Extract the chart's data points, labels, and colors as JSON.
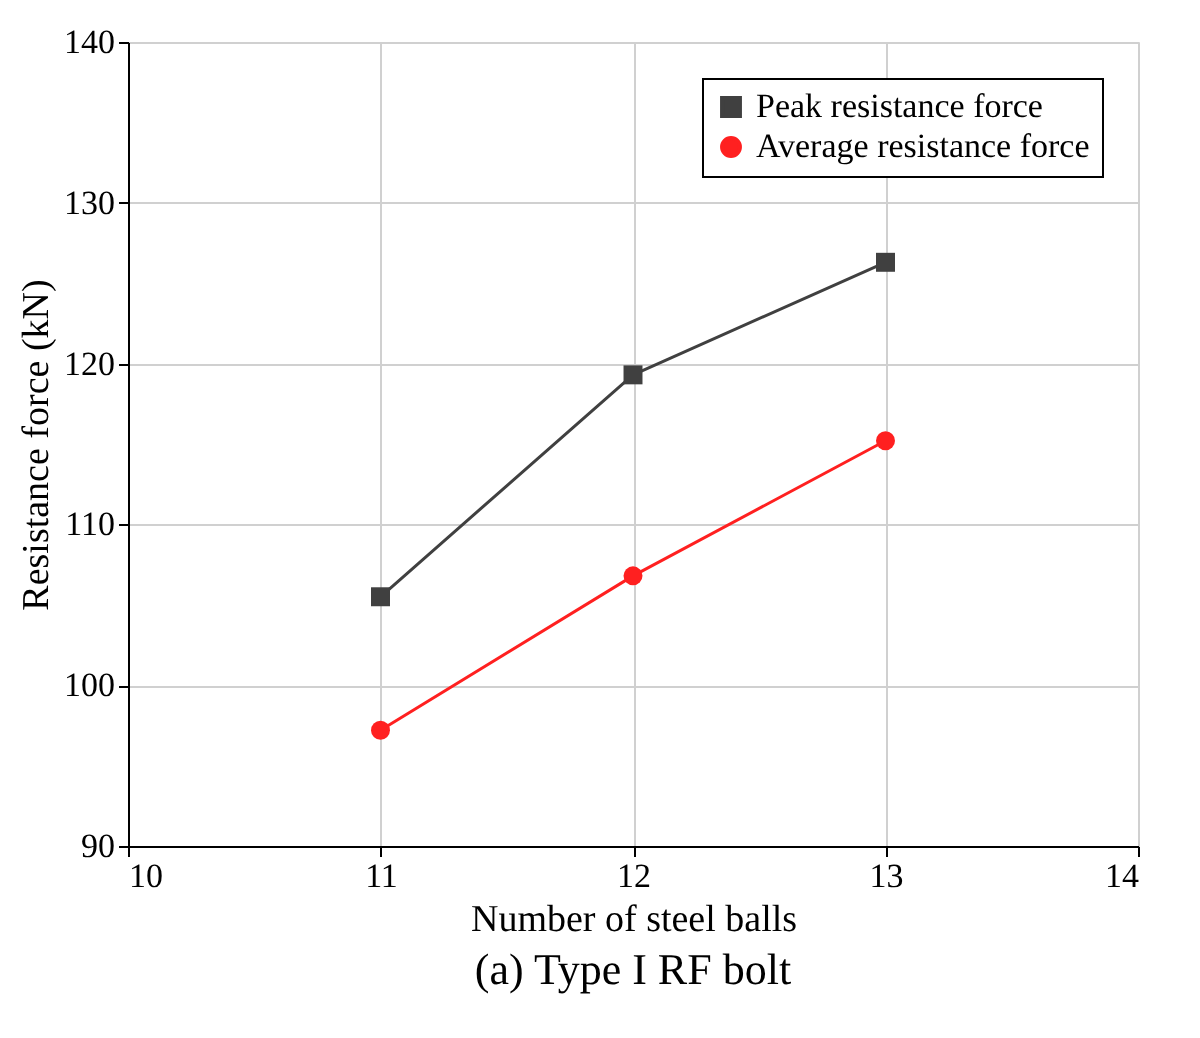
{
  "chart_data": {
    "type": "line",
    "xlabel": "Number of steel balls",
    "ylabel": "Resistance force (kN)",
    "x": [
      11,
      12,
      13
    ],
    "series": [
      {
        "name": "Peak resistance force",
        "color": "#404040",
        "marker": "square",
        "values": [
          105.5,
          119.3,
          126.3
        ]
      },
      {
        "name": "Average resistance force",
        "color": "#ff2020",
        "marker": "circle",
        "values": [
          97.2,
          106.8,
          115.2
        ]
      }
    ],
    "xlim": [
      10,
      14
    ],
    "xticks": [
      10,
      11,
      12,
      13,
      14
    ],
    "ylim": [
      90,
      140
    ],
    "yticks": [
      90,
      100,
      110,
      120,
      130,
      140
    ],
    "grid": true,
    "legend": "top right",
    "line_style": "solid",
    "annotations": [
      "(a) Type I RF bolt"
    ]
  }
}
